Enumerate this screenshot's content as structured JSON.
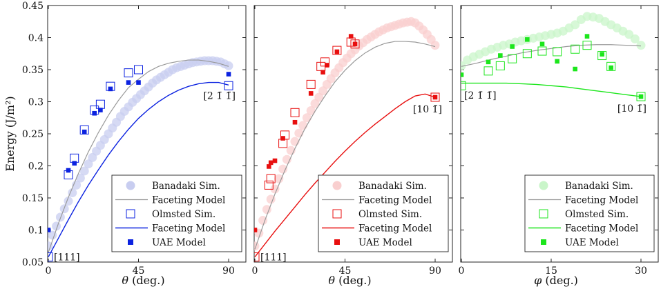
{
  "chart_data": [
    {
      "type": "scatter",
      "panel": "left",
      "xlabel": "θ (deg.)",
      "ylabel": "Energy (J/m²)",
      "xlim": [
        0,
        90
      ],
      "ylim": [
        0.05,
        0.45
      ],
      "xticks": [
        "0",
        "45",
        "90"
      ],
      "yticks": [
        "0.05",
        "0.1",
        "0.15",
        "0.2",
        "0.25",
        "0.3",
        "0.35",
        "0.4",
        "0.45"
      ],
      "color": "#0b22e0",
      "light_color": "#c8cdf0",
      "annotations": [
        {
          "text": "[111]",
          "x": 0,
          "y": 0.058
        },
        {
          "text": "[2 1̄ 1̄]",
          "x": 90,
          "y": 0.326
        }
      ],
      "series": [
        {
          "name": "Banadaki Sim.",
          "marker": "circle-light",
          "x": [
            0,
            2,
            4,
            6,
            8,
            10,
            12,
            14,
            16,
            18,
            20,
            22,
            24,
            26,
            28,
            30,
            32,
            34,
            36,
            38,
            40,
            42,
            44,
            46,
            48,
            50,
            52,
            54,
            56,
            58,
            60,
            62,
            64,
            66,
            68,
            70,
            72,
            74,
            76,
            78,
            80,
            82,
            84,
            86,
            88,
            90
          ],
          "y": [
            0.075,
            0.092,
            0.106,
            0.12,
            0.133,
            0.145,
            0.158,
            0.17,
            0.181,
            0.192,
            0.203,
            0.213,
            0.223,
            0.232,
            0.241,
            0.25,
            0.259,
            0.268,
            0.277,
            0.285,
            0.292,
            0.299,
            0.305,
            0.311,
            0.317,
            0.323,
            0.329,
            0.334,
            0.338,
            0.342,
            0.346,
            0.35,
            0.353,
            0.355,
            0.357,
            0.359,
            0.361,
            0.362,
            0.363,
            0.364,
            0.364,
            0.364,
            0.363,
            0.362,
            0.359,
            0.356
          ]
        },
        {
          "name": "Faceting Model",
          "marker": "line-gray",
          "x": [
            0,
            5,
            10,
            15,
            20,
            25,
            30,
            35,
            40,
            45,
            50,
            55,
            60,
            65,
            70,
            75,
            80,
            85,
            90
          ],
          "y": [
            0.065,
            0.11,
            0.151,
            0.188,
            0.222,
            0.252,
            0.279,
            0.302,
            0.322,
            0.335,
            0.347,
            0.355,
            0.36,
            0.363,
            0.365,
            0.365,
            0.363,
            0.36,
            0.355
          ]
        },
        {
          "name": "Olmsted Sim.",
          "marker": "square-open",
          "x": [
            0,
            10,
            13,
            18,
            23,
            26,
            31,
            40,
            45,
            90
          ],
          "y": [
            0.058,
            0.186,
            0.212,
            0.256,
            0.287,
            0.296,
            0.324,
            0.345,
            0.35,
            0.325
          ]
        },
        {
          "name": "Faceting Model",
          "marker": "line-color",
          "x": [
            0,
            5,
            10,
            15,
            20,
            25,
            30,
            35,
            40,
            45,
            50,
            55,
            60,
            65,
            70,
            75,
            80,
            85,
            90
          ],
          "y": [
            0.058,
            0.087,
            0.116,
            0.144,
            0.17,
            0.194,
            0.217,
            0.238,
            0.257,
            0.274,
            0.288,
            0.3,
            0.31,
            0.318,
            0.324,
            0.328,
            0.33,
            0.33,
            0.326
          ]
        },
        {
          "name": "UAE Model",
          "marker": "square-filled",
          "x": [
            0,
            10,
            13,
            18,
            23,
            26,
            31,
            40,
            45,
            90
          ],
          "y": [
            0.1,
            0.193,
            0.204,
            0.253,
            0.282,
            0.287,
            0.32,
            0.33,
            0.33,
            0.343
          ]
        }
      ]
    },
    {
      "type": "scatter",
      "panel": "middle",
      "xlabel": "θ (deg.)",
      "xlim": [
        0,
        90
      ],
      "ylim": [
        0.05,
        0.45
      ],
      "xticks": [
        "0",
        "45",
        "90"
      ],
      "color": "#e80f0f",
      "light_color": "#f9cfcf",
      "annotations": [
        {
          "text": "[111]",
          "x": 0,
          "y": 0.058
        },
        {
          "text": "[10 1̄]",
          "x": 90,
          "y": 0.305
        }
      ],
      "series": [
        {
          "name": "Banadaki Sim.",
          "marker": "circle-light",
          "x": [
            0,
            2,
            4,
            6,
            8,
            10,
            12,
            14,
            16,
            18,
            20,
            22,
            24,
            26,
            28,
            30,
            32,
            34,
            36,
            38,
            40,
            42,
            44,
            46,
            48,
            50,
            52,
            54,
            56,
            58,
            60,
            62,
            64,
            66,
            68,
            70,
            72,
            74,
            76,
            78,
            80,
            82,
            84,
            86,
            88,
            90
          ],
          "y": [
            0.075,
            0.095,
            0.115,
            0.132,
            0.148,
            0.164,
            0.18,
            0.195,
            0.21,
            0.224,
            0.238,
            0.251,
            0.263,
            0.275,
            0.286,
            0.297,
            0.307,
            0.317,
            0.327,
            0.336,
            0.345,
            0.353,
            0.361,
            0.368,
            0.375,
            0.381,
            0.387,
            0.392,
            0.397,
            0.401,
            0.405,
            0.409,
            0.412,
            0.415,
            0.417,
            0.419,
            0.421,
            0.423,
            0.424,
            0.425,
            0.423,
            0.418,
            0.412,
            0.405,
            0.397,
            0.388
          ]
        },
        {
          "name": "Faceting Model",
          "marker": "line-gray",
          "x": [
            0,
            5,
            10,
            15,
            20,
            25,
            30,
            35,
            40,
            45,
            50,
            55,
            60,
            65,
            70,
            75,
            80,
            85,
            90
          ],
          "y": [
            0.07,
            0.115,
            0.156,
            0.193,
            0.227,
            0.258,
            0.285,
            0.309,
            0.331,
            0.349,
            0.364,
            0.376,
            0.385,
            0.391,
            0.394,
            0.394,
            0.393,
            0.39,
            0.386
          ]
        },
        {
          "name": "Olmsted Sim.",
          "marker": "square-open",
          "x": [
            0,
            7,
            8,
            14,
            15,
            20,
            28,
            33,
            35,
            41,
            48,
            50,
            90
          ],
          "y": [
            0.058,
            0.17,
            0.18,
            0.235,
            0.248,
            0.283,
            0.327,
            0.355,
            0.362,
            0.38,
            0.393,
            0.39,
            0.307
          ]
        },
        {
          "name": "Faceting Model",
          "marker": "line-color",
          "x": [
            0,
            5,
            10,
            15,
            20,
            25,
            30,
            35,
            40,
            45,
            50,
            55,
            60,
            65,
            70,
            75,
            80,
            85,
            90
          ],
          "y": [
            0.058,
            0.078,
            0.098,
            0.117,
            0.136,
            0.155,
            0.173,
            0.19,
            0.207,
            0.223,
            0.238,
            0.252,
            0.265,
            0.277,
            0.289,
            0.3,
            0.309,
            0.312,
            0.307
          ]
        },
        {
          "name": "UAE Model",
          "marker": "square-filled",
          "x": [
            0,
            7,
            8,
            10,
            14,
            20,
            28,
            34,
            36,
            41,
            48,
            50,
            90
          ],
          "y": [
            0.1,
            0.199,
            0.205,
            0.208,
            0.243,
            0.268,
            0.313,
            0.346,
            0.357,
            0.378,
            0.402,
            0.39,
            0.307
          ]
        }
      ]
    },
    {
      "type": "scatter",
      "panel": "right",
      "xlabel": "φ (deg.)",
      "xlim": [
        0,
        30
      ],
      "ylim": [
        0.05,
        0.45
      ],
      "xticks": [
        "0",
        "15",
        "30"
      ],
      "color": "#1ce61c",
      "light_color": "#c9f5c9",
      "annotations": [
        {
          "text": "[2 1̄ 1̄]",
          "x": 0,
          "y": 0.31
        },
        {
          "text": "[10 1̄]",
          "x": 30,
          "y": 0.29
        }
      ],
      "series": [
        {
          "name": "Banadaki Sim.",
          "marker": "circle-light",
          "x": [
            0,
            1,
            2,
            3,
            4,
            5,
            6,
            7,
            8,
            9,
            10,
            11,
            12,
            13,
            14,
            15,
            16,
            17,
            18,
            19,
            20,
            21,
            22,
            23,
            24,
            25,
            26,
            27,
            28,
            29,
            30
          ],
          "y": [
            0.356,
            0.365,
            0.37,
            0.374,
            0.378,
            0.382,
            0.385,
            0.388,
            0.39,
            0.393,
            0.395,
            0.397,
            0.399,
            0.401,
            0.403,
            0.405,
            0.407,
            0.41,
            0.415,
            0.42,
            0.428,
            0.433,
            0.432,
            0.43,
            0.425,
            0.42,
            0.415,
            0.41,
            0.405,
            0.398,
            0.388
          ]
        },
        {
          "name": "Faceting Model",
          "marker": "line-gray",
          "x": [
            0,
            2.5,
            5,
            7.5,
            10,
            12.5,
            15,
            17.5,
            20,
            22.5,
            25,
            27.5,
            30
          ],
          "y": [
            0.355,
            0.36,
            0.366,
            0.371,
            0.376,
            0.38,
            0.383,
            0.386,
            0.388,
            0.389,
            0.389,
            0.388,
            0.387
          ]
        },
        {
          "name": "Olmsted Sim.",
          "marker": "square-open",
          "x": [
            0,
            4.5,
            6.5,
            8.5,
            11,
            13.5,
            16,
            19,
            21,
            23.5,
            25,
            30
          ],
          "y": [
            0.325,
            0.348,
            0.356,
            0.367,
            0.375,
            0.379,
            0.378,
            0.382,
            0.388,
            0.372,
            0.355,
            0.308
          ]
        },
        {
          "name": "Faceting Model",
          "marker": "line-color",
          "x": [
            0,
            2.5,
            5,
            7.5,
            10,
            12.5,
            15,
            17.5,
            20,
            22.5,
            25,
            27.5,
            30
          ],
          "y": [
            0.329,
            0.329,
            0.329,
            0.329,
            0.328,
            0.327,
            0.325,
            0.323,
            0.32,
            0.317,
            0.314,
            0.311,
            0.308
          ]
        },
        {
          "name": "UAE Model",
          "marker": "square-filled",
          "x": [
            0,
            4.5,
            6.5,
            8.5,
            11,
            13.5,
            16,
            19,
            21,
            23.5,
            25,
            30
          ],
          "y": [
            0.342,
            0.362,
            0.372,
            0.386,
            0.397,
            0.39,
            0.363,
            0.351,
            0.402,
            0.374,
            0.353,
            0.308
          ]
        }
      ]
    }
  ]
}
